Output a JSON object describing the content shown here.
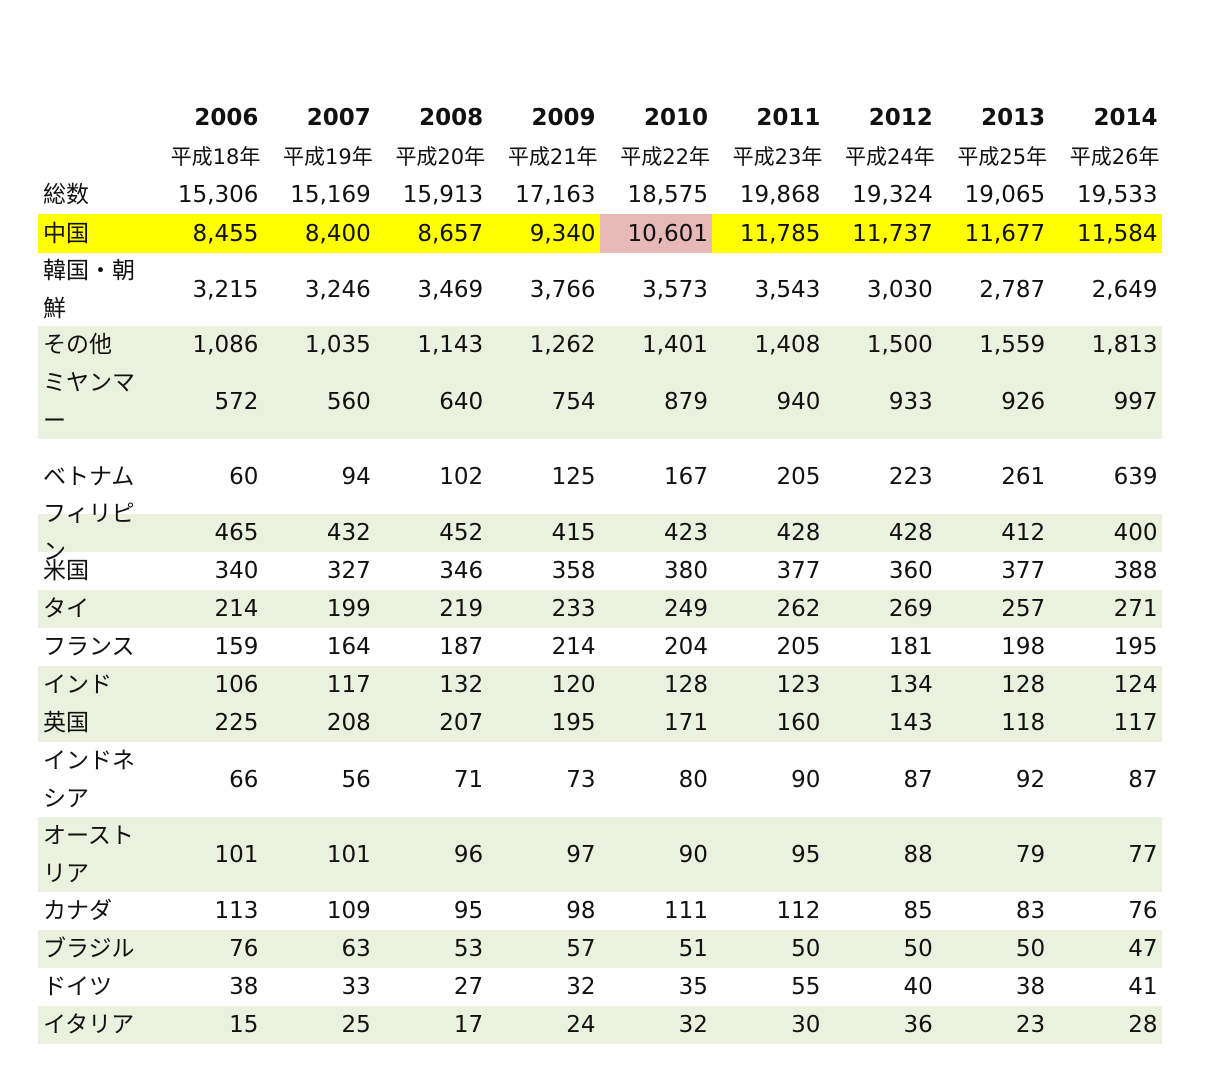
{
  "years": [
    "2006",
    "2007",
    "2008",
    "2009",
    "2010",
    "2011",
    "2012",
    "2013",
    "2014"
  ],
  "eras": [
    "平成18年",
    "平成19年",
    "平成20年",
    "平成21年",
    "平成22年",
    "平成23年",
    "平成24年",
    "平成25年",
    "平成26年"
  ],
  "colors": {
    "highlight": "#ffff00",
    "highlight_cell": "#e6b8b7",
    "shade": "#ebf1de"
  },
  "rows": [
    {
      "label": "総数",
      "values": [
        "15,306",
        "15,169",
        "15,913",
        "17,163",
        "18,575",
        "19,868",
        "19,324",
        "19,065",
        "19,533"
      ]
    },
    {
      "label": "中国",
      "values": [
        "8,455",
        "8,400",
        "8,657",
        "9,340",
        "10,601",
        "11,785",
        "11,737",
        "11,677",
        "11,584"
      ]
    },
    {
      "label": "韓国・朝鮮",
      "values": [
        "3,215",
        "3,246",
        "3,469",
        "3,766",
        "3,573",
        "3,543",
        "3,030",
        "2,787",
        "2,649"
      ]
    },
    {
      "label": "その他",
      "values": [
        "1,086",
        "1,035",
        "1,143",
        "1,262",
        "1,401",
        "1,408",
        "1,500",
        "1,559",
        "1,813"
      ]
    },
    {
      "label": "ミヤンマー",
      "values": [
        "572",
        "560",
        "640",
        "754",
        "879",
        "940",
        "933",
        "926",
        "997"
      ]
    },
    {
      "label": "ベトナム",
      "values": [
        "60",
        "94",
        "102",
        "125",
        "167",
        "205",
        "223",
        "261",
        "639"
      ]
    },
    {
      "label": "フィリピン",
      "values": [
        "465",
        "432",
        "452",
        "415",
        "423",
        "428",
        "428",
        "412",
        "400"
      ]
    },
    {
      "label": "米国",
      "values": [
        "340",
        "327",
        "346",
        "358",
        "380",
        "377",
        "360",
        "377",
        "388"
      ]
    },
    {
      "label": "タイ",
      "values": [
        "214",
        "199",
        "219",
        "233",
        "249",
        "262",
        "269",
        "257",
        "271"
      ]
    },
    {
      "label": "フランス",
      "values": [
        "159",
        "164",
        "187",
        "214",
        "204",
        "205",
        "181",
        "198",
        "195"
      ]
    },
    {
      "label": "インド",
      "values": [
        "106",
        "117",
        "132",
        "120",
        "128",
        "123",
        "134",
        "128",
        "124"
      ]
    },
    {
      "label": "英国",
      "values": [
        "225",
        "208",
        "207",
        "195",
        "171",
        "160",
        "143",
        "118",
        "117"
      ]
    },
    {
      "label": "インドネシア",
      "values": [
        "66",
        "56",
        "71",
        "73",
        "80",
        "90",
        "87",
        "92",
        "87"
      ]
    },
    {
      "label": "オーストリア",
      "values": [
        "101",
        "101",
        "96",
        "97",
        "90",
        "95",
        "88",
        "79",
        "77"
      ]
    },
    {
      "label": "カナダ",
      "values": [
        "113",
        "109",
        "95",
        "98",
        "111",
        "112",
        "85",
        "83",
        "76"
      ]
    },
    {
      "label": "ブラジル",
      "values": [
        "76",
        "63",
        "53",
        "57",
        "51",
        "50",
        "50",
        "50",
        "47"
      ]
    },
    {
      "label": "ドイツ",
      "values": [
        "38",
        "33",
        "27",
        "32",
        "35",
        "55",
        "40",
        "38",
        "41"
      ]
    },
    {
      "label": "イタリア",
      "values": [
        "15",
        "25",
        "17",
        "24",
        "32",
        "30",
        "36",
        "23",
        "28"
      ]
    }
  ]
}
